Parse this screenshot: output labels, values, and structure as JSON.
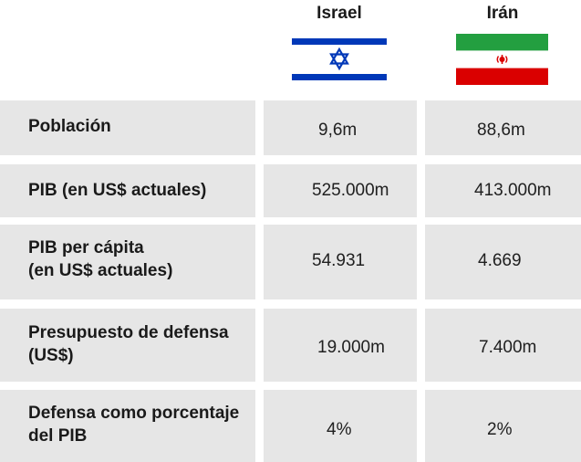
{
  "header": {
    "country_a": {
      "name": "Israel",
      "flag_icon": "israel-flag-icon"
    },
    "country_b": {
      "name": "Irán",
      "flag_icon": "iran-flag-icon"
    }
  },
  "rows": [
    {
      "label": "Población",
      "a": "9,6m",
      "b": "88,6m"
    },
    {
      "label": "PIB (en US$ actuales)",
      "a": "525.000m",
      "b": "413.000m"
    },
    {
      "label_line1": "PIB per cápita",
      "label_line2": "(en US$ actuales)",
      "a": "54.931",
      "b": "4.669"
    },
    {
      "label_line1": "Presupuesto de defensa",
      "label_line2": "(US$)",
      "a": "19.000m",
      "b": "7.400m"
    },
    {
      "label_line1": "Defensa como porcentaje",
      "label_line2": "del PIB",
      "a": "4%",
      "b": "2%"
    }
  ],
  "colors": {
    "row_bg": "#e6e6e6",
    "israel_blue": "#0038b8",
    "iran_green": "#239f40",
    "iran_red": "#da0000"
  }
}
